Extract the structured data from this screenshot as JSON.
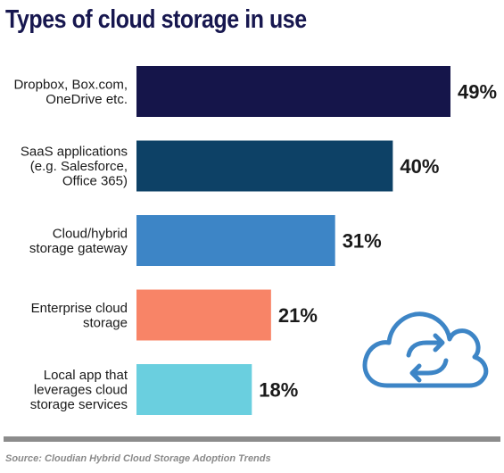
{
  "chart_data": {
    "type": "bar",
    "orientation": "horizontal",
    "title": "Types of cloud storage in use",
    "categories": [
      [
        "Dropbox, Box.com,",
        "OneDrive etc."
      ],
      [
        "SaaS applications",
        "(e.g. Salesforce,",
        "Office 365)"
      ],
      [
        "Cloud/hybrid",
        "storage gateway"
      ],
      [
        "Enterprise cloud",
        "storage"
      ],
      [
        "Local app that",
        "leverages cloud",
        "storage services"
      ]
    ],
    "values": [
      49,
      40,
      31,
      21,
      18
    ],
    "value_labels": [
      "49%",
      "40%",
      "31%",
      "21%",
      "18%"
    ],
    "colors": [
      "#15154a",
      "#0d4166",
      "#3d85c6",
      "#f88467",
      "#6acfdf"
    ],
    "xlim": [
      0,
      49
    ],
    "grid": false,
    "legend": "none"
  },
  "source": "Source: Cloudian Hybrid Cloud Storage Adoption Trends",
  "icon": "cloud-sync-icon",
  "icon_color": "#3d85c6",
  "divider_color": "#8c8c8c",
  "title_color": "#17174f"
}
